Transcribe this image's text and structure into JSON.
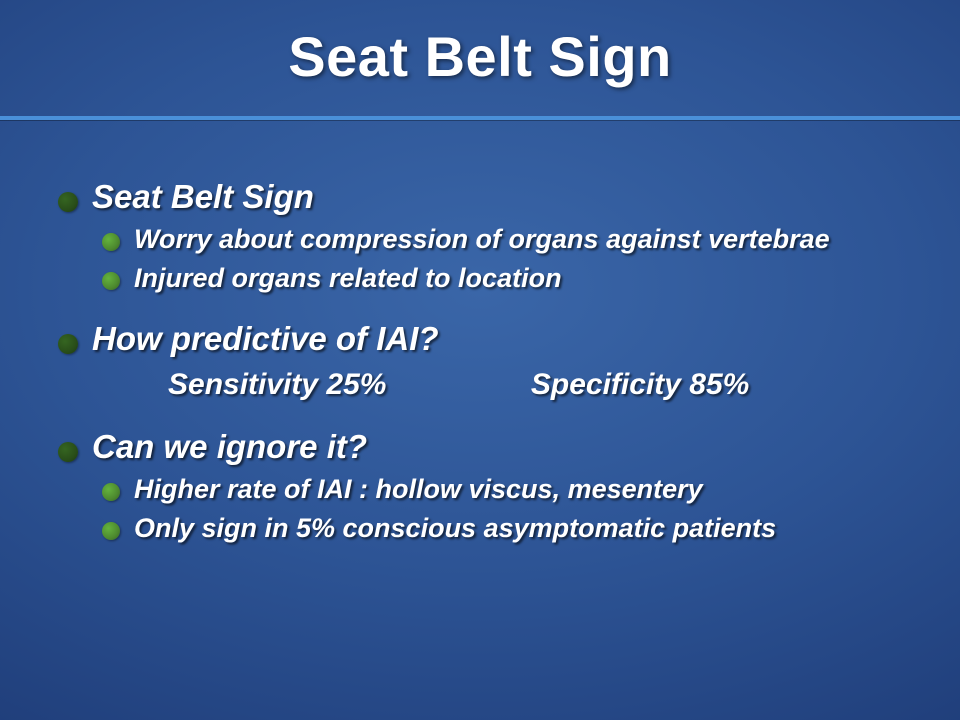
{
  "title": "Seat Belt Sign",
  "colors": {
    "bullet_l1": "#294e19",
    "bullet_l2": "#4d8a2f",
    "divider": "#4a90d9",
    "text": "#ffffff"
  },
  "typography": {
    "title_fontsize": 56,
    "level1_fontsize": 33,
    "level2_fontsize": 27,
    "stats_fontsize": 30,
    "weight": 700,
    "style": "italic"
  },
  "bullets": {
    "group1": {
      "heading": "Seat Belt Sign",
      "items": [
        "Worry about compression of organs against vertebrae",
        "Injured organs related to location"
      ]
    },
    "group2": {
      "heading": "How predictive of IAI?",
      "stats": {
        "sensitivity_label": "Sensitivity 25%",
        "specificity_label": "Specificity 85%"
      }
    },
    "group3": {
      "heading": "Can we ignore it?",
      "items": [
        "Higher rate of IAI : hollow viscus, mesentery",
        "Only sign in 5% conscious asymptomatic patients"
      ]
    }
  }
}
